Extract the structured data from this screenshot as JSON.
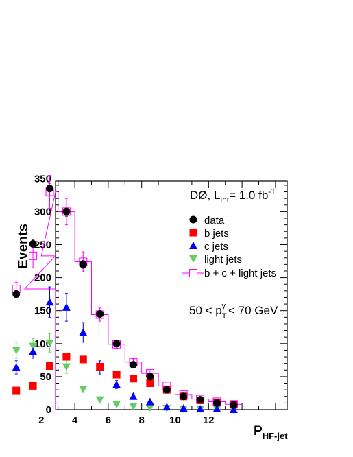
{
  "chart_data": {
    "type": "scatter",
    "xlabel_main": "P",
    "xlabel_sub": "HF-jet",
    "ylabel": "Events",
    "xlim": [
      0,
      14
    ],
    "ylim": [
      0,
      360
    ],
    "x_ticks": [
      2,
      4,
      6,
      8,
      10,
      12
    ],
    "y_ticks": [
      0,
      50,
      100,
      150,
      200,
      250,
      300,
      350
    ],
    "bin_edges": [
      0,
      1,
      2,
      3,
      4,
      5,
      6,
      7,
      8,
      9,
      10,
      11,
      12,
      13,
      14
    ],
    "x": [
      0.5,
      1.5,
      2.5,
      3.5,
      4.5,
      5.5,
      6.5,
      7.5,
      8.5,
      9.5,
      10.5,
      11.5,
      12.5,
      13.5
    ],
    "series": [
      {
        "name": "data",
        "marker": "circle",
        "color": "#000000",
        "values": [
          175,
          251,
          335,
          300,
          220,
          145,
          100,
          68,
          50,
          30,
          20,
          15,
          10,
          7
        ],
        "errors": [
          6,
          6,
          8,
          7,
          6,
          5,
          4,
          4,
          3,
          3,
          2,
          2,
          2,
          2
        ]
      },
      {
        "name": "b jets",
        "marker": "square",
        "color": "#ff0000",
        "values": [
          29,
          36,
          66,
          80,
          76,
          65,
          53,
          47,
          40,
          30,
          20,
          14,
          11,
          8
        ],
        "errors": [
          3,
          3,
          4,
          5,
          5,
          4,
          4,
          3,
          3,
          3,
          2,
          2,
          2,
          1
        ]
      },
      {
        "name": "c jets",
        "marker": "triangle-up",
        "color": "#0000ff",
        "values": [
          64,
          88,
          163,
          155,
          117,
          64,
          38,
          20,
          12,
          4,
          2,
          1,
          1,
          0
        ],
        "errors": [
          10,
          10,
          23,
          21,
          15,
          10,
          6,
          4,
          3,
          2,
          1,
          1,
          1,
          1
        ]
      },
      {
        "name": "light jets",
        "marker": "triangle-down",
        "color": "#66cc66",
        "values": [
          90,
          96,
          101,
          65,
          31,
          15,
          8,
          5,
          3,
          2,
          1,
          1,
          1,
          0
        ],
        "errors": [
          12,
          12,
          14,
          10,
          5,
          3,
          2,
          1,
          1,
          1,
          1,
          1,
          1,
          1
        ]
      },
      {
        "name": "b + c + light jets",
        "marker": "open-square-hist",
        "color": "#ff00ff",
        "values": [
          183,
          233,
          330,
          300,
          224,
          144,
          99,
          72,
          55,
          36,
          23,
          16,
          12,
          8
        ],
        "errors": [
          10,
          18,
          25,
          20,
          15,
          10,
          6,
          5,
          4,
          3,
          3,
          2,
          2,
          2
        ]
      }
    ],
    "annotations": {
      "experiment": "DØ, L",
      "lumi_sub": "int",
      "lumi_value": "= 1.0 fb",
      "lumi_sup": "-1",
      "pt_range_left": "50 < p",
      "pt_sub": "T",
      "pt_sup": "γ",
      "pt_range_right": "< 70 GeV"
    },
    "legend_position": "top-right",
    "grid": false
  }
}
